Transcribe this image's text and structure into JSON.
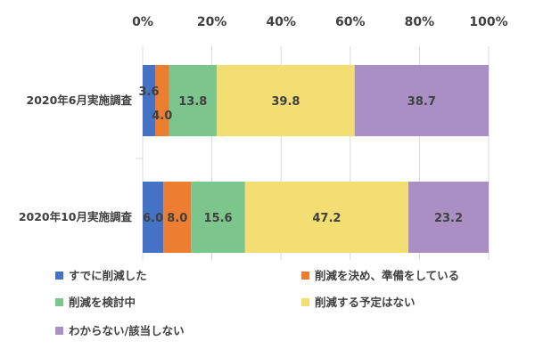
{
  "chart_data": {
    "type": "bar",
    "orientation": "horizontal",
    "stacked": "percent",
    "categories": [
      "2020年6月実施調査",
      "2020年10月実施調査"
    ],
    "series": [
      {
        "name": "すでに削減した",
        "values": [
          3.6,
          6.0
        ],
        "color": "#4472C4"
      },
      {
        "name": "削減を決め、準備をしている",
        "values": [
          4.0,
          8.0
        ],
        "color": "#ED7D31"
      },
      {
        "name": "削減を検討中",
        "values": [
          13.8,
          15.6
        ],
        "color": "#7CC68D"
      },
      {
        "name": "削減する予定はない",
        "values": [
          39.8,
          47.2
        ],
        "color": "#F2DE72"
      },
      {
        "name": "わからない/該当しない",
        "values": [
          38.7,
          23.2
        ],
        "color": "#A98FC4"
      }
    ],
    "xlim": [
      0,
      100
    ],
    "xticks": [
      "0%",
      "20%",
      "40%",
      "60%",
      "80%",
      "100%"
    ],
    "grid": true,
    "legend": "bottom"
  }
}
